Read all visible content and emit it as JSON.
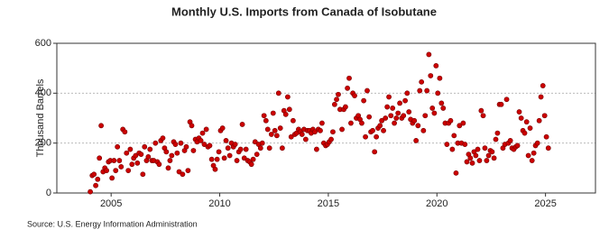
{
  "chart_data": {
    "type": "scatter",
    "title": "Monthly U.S. Imports from Canada of Isobutane",
    "y_label": "Thousand Barrels",
    "source": "Source: U.S. Energy Information Administration",
    "xlim": [
      2002.5,
      2027.3
    ],
    "xticks": [
      2005,
      2010,
      2015,
      2020,
      2025
    ],
    "ylim": [
      0,
      600
    ],
    "yticks": [
      0,
      200,
      400,
      600
    ],
    "grid": true,
    "x": [
      2004.04,
      2004.13,
      2004.21,
      2004.29,
      2004.38,
      2004.46,
      2004.54,
      2004.63,
      2004.71,
      2004.79,
      2004.88,
      2004.96,
      2005.04,
      2005.13,
      2005.21,
      2005.29,
      2005.38,
      2005.46,
      2005.54,
      2005.63,
      2005.71,
      2005.79,
      2005.88,
      2005.96,
      2006.04,
      2006.13,
      2006.21,
      2006.29,
      2006.38,
      2006.46,
      2006.54,
      2006.63,
      2006.71,
      2006.79,
      2006.88,
      2006.96,
      2007.04,
      2007.13,
      2007.21,
      2007.29,
      2007.38,
      2007.46,
      2007.54,
      2007.63,
      2007.71,
      2007.79,
      2007.88,
      2007.96,
      2008.04,
      2008.13,
      2008.21,
      2008.29,
      2008.38,
      2008.46,
      2008.54,
      2008.63,
      2008.71,
      2008.79,
      2008.88,
      2008.96,
      2009.04,
      2009.13,
      2009.21,
      2009.29,
      2009.38,
      2009.46,
      2009.54,
      2009.63,
      2009.71,
      2009.79,
      2009.88,
      2009.96,
      2010.04,
      2010.13,
      2010.21,
      2010.29,
      2010.38,
      2010.46,
      2010.54,
      2010.63,
      2010.71,
      2010.79,
      2010.88,
      2010.96,
      2011.04,
      2011.13,
      2011.21,
      2011.29,
      2011.38,
      2011.46,
      2011.54,
      2011.63,
      2011.71,
      2011.79,
      2011.88,
      2011.96,
      2012.04,
      2012.13,
      2012.21,
      2012.29,
      2012.38,
      2012.46,
      2012.54,
      2012.63,
      2012.71,
      2012.79,
      2012.88,
      2012.96,
      2013.04,
      2013.13,
      2013.21,
      2013.29,
      2013.38,
      2013.46,
      2013.54,
      2013.63,
      2013.71,
      2013.79,
      2013.88,
      2013.96,
      2014.04,
      2014.13,
      2014.21,
      2014.29,
      2014.38,
      2014.46,
      2014.54,
      2014.63,
      2014.71,
      2014.79,
      2014.88,
      2014.96,
      2015.04,
      2015.13,
      2015.21,
      2015.29,
      2015.38,
      2015.46,
      2015.54,
      2015.63,
      2015.71,
      2015.79,
      2015.88,
      2015.96,
      2016.04,
      2016.13,
      2016.21,
      2016.29,
      2016.38,
      2016.46,
      2016.54,
      2016.63,
      2016.71,
      2016.79,
      2016.88,
      2016.96,
      2017.04,
      2017.13,
      2017.21,
      2017.29,
      2017.38,
      2017.46,
      2017.54,
      2017.63,
      2017.71,
      2017.79,
      2017.88,
      2017.96,
      2018.04,
      2018.13,
      2018.21,
      2018.29,
      2018.38,
      2018.46,
      2018.54,
      2018.63,
      2018.71,
      2018.79,
      2018.88,
      2018.96,
      2019.04,
      2019.13,
      2019.21,
      2019.29,
      2019.38,
      2019.46,
      2019.54,
      2019.63,
      2019.71,
      2019.79,
      2019.88,
      2019.96,
      2020.04,
      2020.13,
      2020.21,
      2020.29,
      2020.38,
      2020.46,
      2020.54,
      2020.63,
      2020.71,
      2020.79,
      2020.88,
      2020.96,
      2021.04,
      2021.13,
      2021.21,
      2021.29,
      2021.38,
      2021.46,
      2021.54,
      2021.63,
      2021.71,
      2021.79,
      2021.88,
      2021.96,
      2022.04,
      2022.13,
      2022.21,
      2022.29,
      2022.38,
      2022.46,
      2022.54,
      2022.63,
      2022.71,
      2022.79,
      2022.88,
      2022.96,
      2023.04,
      2023.13,
      2023.21,
      2023.29,
      2023.38,
      2023.46,
      2023.54,
      2023.63,
      2023.71,
      2023.79,
      2023.88,
      2023.96,
      2024.04,
      2024.13,
      2024.21,
      2024.29,
      2024.38,
      2024.46,
      2024.54,
      2024.63,
      2024.71,
      2024.79,
      2024.88,
      2024.96,
      2025.04,
      2025.13
    ],
    "series": [
      {
        "color": "#cc0000",
        "values": [
          5,
          70,
          75,
          30,
          55,
          140,
          270,
          85,
          100,
          90,
          125,
          130,
          60,
          130,
          90,
          185,
          130,
          105,
          255,
          245,
          160,
          90,
          175,
          115,
          140,
          150,
          120,
          160,
          155,
          75,
          185,
          130,
          145,
          175,
          130,
          130,
          200,
          125,
          115,
          210,
          220,
          180,
          165,
          100,
          130,
          150,
          205,
          195,
          160,
          85,
          200,
          75,
          170,
          185,
          90,
          285,
          270,
          170,
          215,
          205,
          220,
          210,
          240,
          195,
          255,
          185,
          190,
          135,
          110,
          95,
          135,
          165,
          250,
          260,
          140,
          210,
          180,
          150,
          200,
          185,
          195,
          130,
          165,
          175,
          275,
          140,
          175,
          130,
          125,
          115,
          135,
          205,
          155,
          195,
          180,
          200,
          310,
          290,
          255,
          180,
          235,
          320,
          250,
          230,
          400,
          260,
          180,
          330,
          315,
          385,
          335,
          225,
          290,
          235,
          240,
          255,
          245,
          235,
          255,
          215,
          250,
          250,
          240,
          255,
          245,
          175,
          255,
          250,
          280,
          200,
          190,
          195,
          205,
          215,
          245,
          355,
          375,
          395,
          335,
          255,
          335,
          345,
          420,
          460,
          280,
          400,
          390,
          300,
          310,
          295,
          280,
          370,
          225,
          410,
          305,
          245,
          250,
          165,
          225,
          260,
          270,
          290,
          250,
          300,
          345,
          385,
          310,
          340,
          280,
          300,
          320,
          360,
          300,
          310,
          370,
          400,
          325,
          295,
          280,
          290,
          210,
          270,
          410,
          445,
          250,
          310,
          410,
          555,
          470,
          340,
          320,
          510,
          400,
          460,
          360,
          340,
          280,
          195,
          280,
          290,
          175,
          230,
          80,
          200,
          270,
          200,
          280,
          195,
          125,
          155,
          140,
          120,
          165,
          150,
          175,
          130,
          330,
          310,
          180,
          130,
          150,
          170,
          165,
          140,
          215,
          240,
          355,
          355,
          180,
          195,
          375,
          200,
          210,
          180,
          175,
          185,
          190,
          325,
          300,
          250,
          240,
          285,
          150,
          260,
          130,
          160,
          190,
          200,
          290,
          385,
          430,
          310,
          225,
          180
        ]
      }
    ]
  }
}
